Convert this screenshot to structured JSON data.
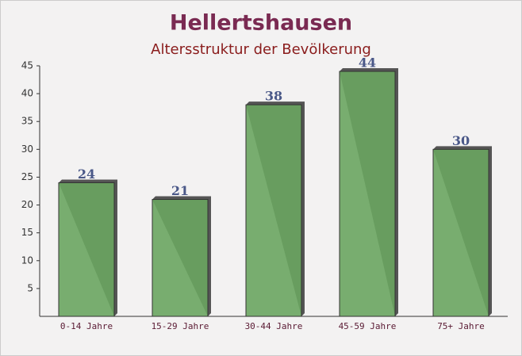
{
  "chart_data": {
    "type": "bar",
    "title": "Hellertshausen",
    "subtitle": "Altersstruktur der Bevölkerung",
    "categories": [
      "0-14 Jahre",
      "15-29 Jahre",
      "30-44 Jahre",
      "45-59 Jahre",
      "75+ Jahre"
    ],
    "values": [
      24,
      21,
      38,
      44,
      30
    ],
    "color": "#6aa560",
    "ylim": [
      0,
      45
    ],
    "yticks": [
      5,
      10,
      15,
      20,
      25,
      30,
      35,
      40,
      45
    ],
    "grid": false
  }
}
